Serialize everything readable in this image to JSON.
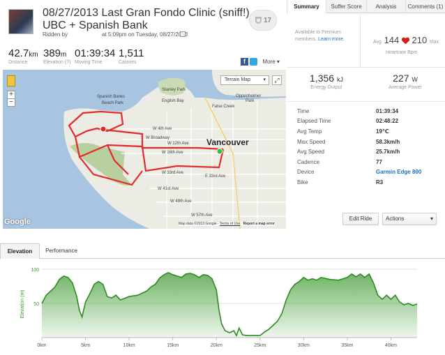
{
  "activity": {
    "title": "08/27/2013 Last Gran Fondo Clinic (sniff!) UBC + Spanish Bank",
    "ridden_by": "Ridden by",
    "ridden_at": "at 5:09pm on Tuesday, 08/27/2013",
    "kudos_count": "17"
  },
  "stats": {
    "distance": {
      "value": "42.7",
      "unit": "km",
      "label": "Distance"
    },
    "elevation": {
      "value": "389",
      "unit": "m",
      "label": "Elevation (?)"
    },
    "moving_time": {
      "value": "01:39:34",
      "label": "Moving Time"
    },
    "calories": {
      "value": "1,511",
      "label": "Calories"
    }
  },
  "share": {
    "fb": "f",
    "more": "More"
  },
  "tabs": [
    "Summary",
    "Suffer Score",
    "Analysis",
    "Comments (1)"
  ],
  "premium": {
    "text": "Available to Premium members.",
    "link": "Learn more."
  },
  "heartrate": {
    "avg_label": "Avg",
    "avg": "144",
    "max": "210",
    "max_label": "Max",
    "label": "Heartrate",
    "unit": "Bpm"
  },
  "energy": {
    "value": "1,356",
    "unit": "kJ",
    "label": "Energy Output"
  },
  "power": {
    "value": "227",
    "unit": "W",
    "label": "Average Power"
  },
  "details": [
    {
      "k": "Time",
      "v": "01:39:34"
    },
    {
      "k": "Elapsed Time",
      "v": "02:48:22"
    },
    {
      "k": "Avg Temp",
      "v": "19℃"
    },
    {
      "k": "Max Speed",
      "v": "58.3km/h"
    },
    {
      "k": "Avg Speed",
      "v": "25.7km/h"
    },
    {
      "k": "Cadence",
      "v": "77"
    },
    {
      "k": "Device",
      "v": "Garmin Edge 800"
    },
    {
      "k": "Bike",
      "v": "R3"
    }
  ],
  "buttons": {
    "edit": "Edit Ride",
    "actions": "Actions"
  },
  "map": {
    "type_select": "Terrain Map",
    "google": "Google",
    "attribution": "Map data ©2013 Google",
    "terms": "Terms of Use",
    "report": "Report a map error",
    "labels": {
      "city": "Vancouver",
      "stanley": "Stanley Park",
      "english_bay": "English Bay",
      "spanish": "Spanish Banks",
      "beach_park": "Beach Park",
      "oppenheimer": "Oppenheimer",
      "park": "Park",
      "false_creek": "False Creek",
      "w4": "W 4th Ave",
      "broadway": "W Broadway",
      "w12": "W 12th Ave",
      "w16": "W 16th Ave",
      "w33": "W 33rd Ave",
      "w41": "W 41st Ave",
      "w49": "W 49th Ave",
      "w57": "W 57th Ave",
      "e33": "E 33rd Ave"
    }
  },
  "bottom_tabs": [
    "Elevation",
    "Performance"
  ],
  "chart_data": {
    "type": "area",
    "ylabel": "Elevation (m)",
    "xlabel": "",
    "yticks": [
      50,
      100
    ],
    "ylim": [
      0,
      100
    ],
    "xlim": [
      0,
      43
    ],
    "xticks": [
      "0km",
      "5km",
      "10km",
      "15km",
      "20km",
      "25km",
      "30km",
      "35km",
      "40km"
    ],
    "xtick_values": [
      0,
      5,
      10,
      15,
      20,
      25,
      30,
      35,
      40
    ],
    "x": [
      0,
      0.5,
      1,
      1.5,
      2,
      2.5,
      3,
      3.5,
      4,
      4.3,
      4.6,
      5,
      5.5,
      6,
      6.5,
      7,
      7.5,
      8,
      8.5,
      9,
      10,
      11,
      12,
      12.5,
      13,
      13.5,
      14,
      14.5,
      15,
      15.5,
      16,
      16.5,
      17,
      17.5,
      18,
      18.5,
      19,
      19.5,
      20,
      20.3,
      20.6,
      21,
      21.5,
      22,
      22.3,
      22.6,
      23,
      23.5,
      24,
      24.5,
      25,
      25.5,
      26,
      26.5,
      27,
      27.5,
      28,
      28.5,
      29,
      29.5,
      30,
      30.5,
      31,
      31.5,
      32,
      33,
      34,
      35,
      35.5,
      36,
      36.5,
      37,
      37.5,
      38,
      38.5,
      39,
      39.5,
      40,
      40.5,
      41,
      41.5,
      42,
      42.5,
      43
    ],
    "y": [
      50,
      62,
      68,
      74,
      85,
      90,
      88,
      80,
      60,
      40,
      30,
      52,
      64,
      78,
      82,
      78,
      60,
      58,
      62,
      55,
      60,
      62,
      68,
      74,
      78,
      87,
      92,
      95,
      92,
      90,
      88,
      93,
      94,
      92,
      88,
      92,
      91,
      86,
      70,
      40,
      20,
      10,
      7,
      10,
      3,
      14,
      4,
      3,
      3,
      3,
      3,
      8,
      12,
      18,
      24,
      35,
      55,
      70,
      78,
      82,
      88,
      84,
      86,
      84,
      88,
      85,
      84,
      88,
      93,
      89,
      93,
      88,
      93,
      80,
      62,
      56,
      62,
      56,
      62,
      52,
      48,
      50,
      47,
      49
    ]
  }
}
